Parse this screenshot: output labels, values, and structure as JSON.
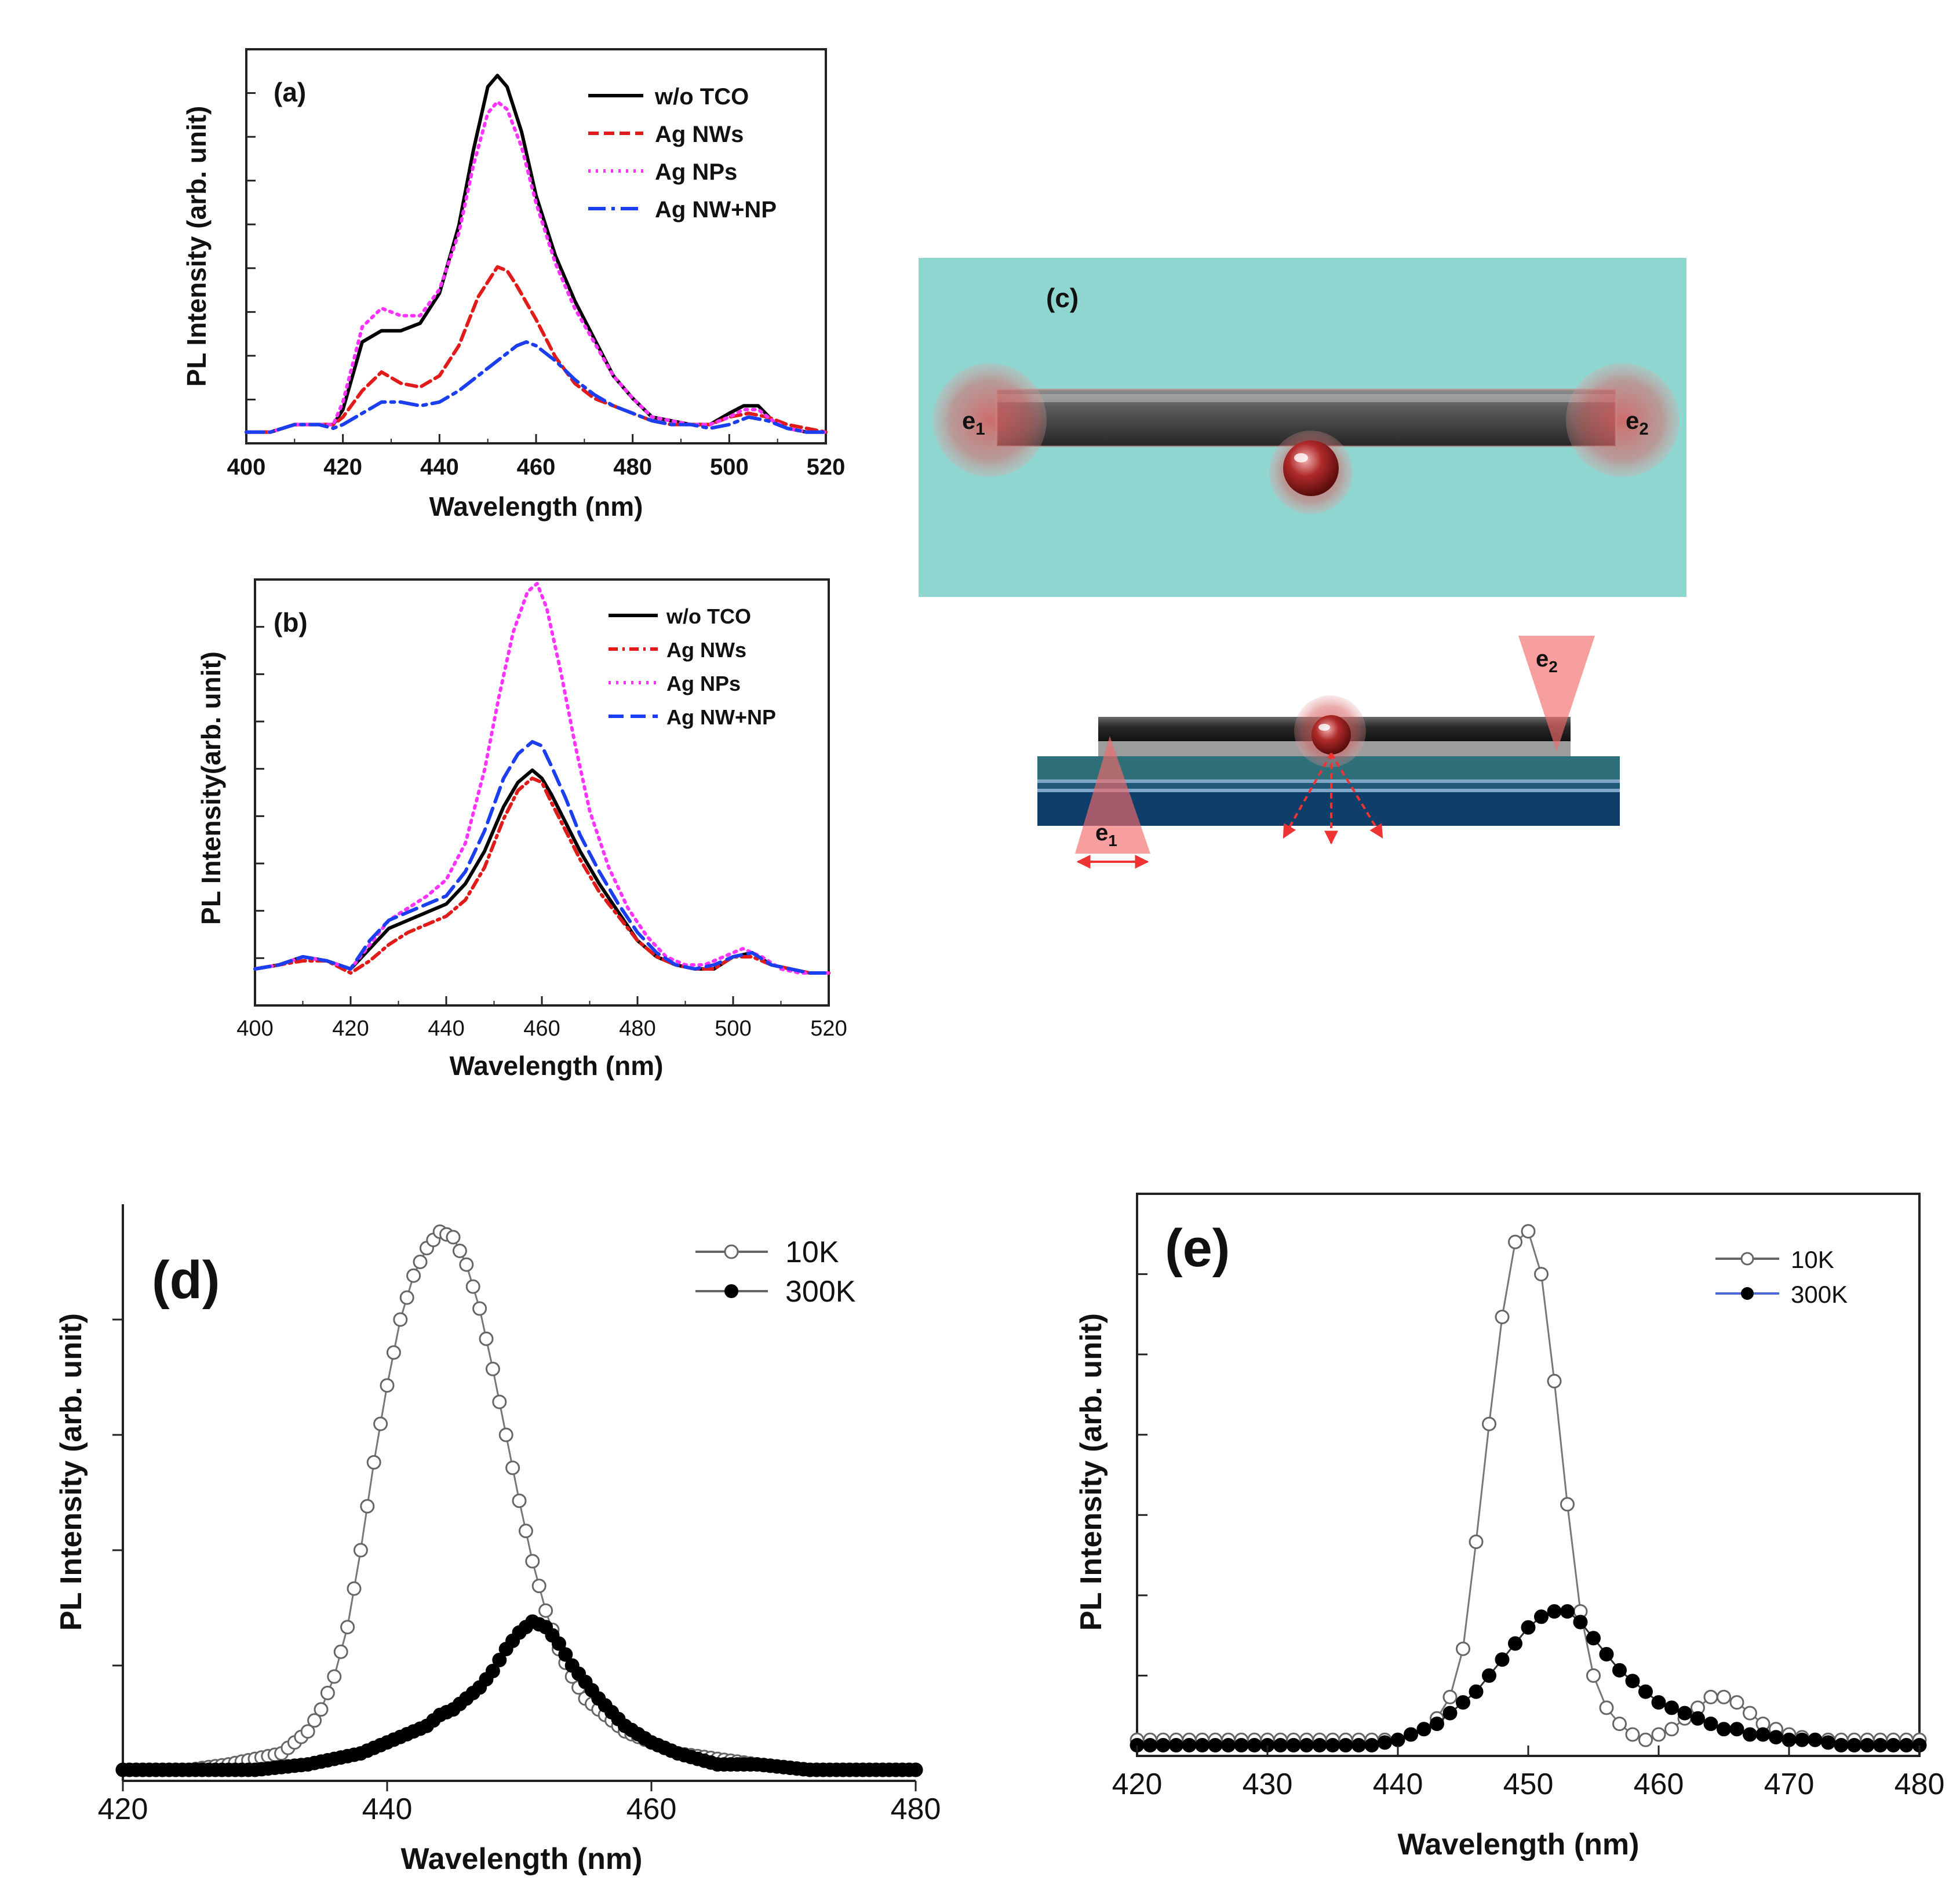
{
  "chart_data": [
    {
      "id": "a",
      "type": "line",
      "panel_label": "(a)",
      "xlabel": "Wavelength (nm)",
      "ylabel": "PL Intensity (arb. unit)",
      "xlim": [
        400,
        520
      ],
      "ylim": [
        0,
        1.05
      ],
      "xticks": [
        "400",
        "420",
        "440",
        "460",
        "480",
        "500",
        "520"
      ],
      "legend_position": "top-right",
      "series": [
        {
          "name": "w/o TCO",
          "color": "#000000",
          "dash": "solid",
          "x": [
            400,
            405,
            410,
            415,
            418,
            420,
            424,
            428,
            432,
            436,
            440,
            444,
            447,
            450,
            452,
            454,
            457,
            460,
            464,
            468,
            472,
            476,
            480,
            484,
            488,
            492,
            496,
            500,
            503,
            506,
            509,
            512,
            516,
            520
          ],
          "y": [
            0.03,
            0.03,
            0.05,
            0.05,
            0.05,
            0.09,
            0.27,
            0.3,
            0.3,
            0.32,
            0.4,
            0.58,
            0.78,
            0.95,
            0.98,
            0.95,
            0.83,
            0.66,
            0.5,
            0.38,
            0.28,
            0.18,
            0.12,
            0.07,
            0.06,
            0.05,
            0.05,
            0.08,
            0.1,
            0.1,
            0.06,
            0.04,
            0.03,
            0.03
          ]
        },
        {
          "name": "Ag NWs",
          "color": "#e11a1a",
          "dash": "18 9",
          "x": [
            400,
            405,
            410,
            415,
            418,
            420,
            424,
            428,
            432,
            436,
            440,
            444,
            448,
            452,
            454,
            456,
            460,
            464,
            468,
            472,
            476,
            480,
            484,
            488,
            492,
            496,
            500,
            504,
            508,
            512,
            516,
            520
          ],
          "y": [
            0.03,
            0.03,
            0.05,
            0.05,
            0.05,
            0.07,
            0.14,
            0.19,
            0.16,
            0.15,
            0.18,
            0.26,
            0.39,
            0.47,
            0.46,
            0.42,
            0.33,
            0.23,
            0.16,
            0.12,
            0.1,
            0.08,
            0.06,
            0.05,
            0.05,
            0.05,
            0.07,
            0.08,
            0.07,
            0.05,
            0.04,
            0.03
          ]
        },
        {
          "name": "Ag NPs",
          "color": "#ff33ff",
          "dash": "4 9",
          "x": [
            400,
            405,
            410,
            415,
            418,
            420,
            424,
            428,
            432,
            436,
            440,
            444,
            447,
            450,
            452,
            454,
            457,
            460,
            464,
            468,
            472,
            476,
            480,
            484,
            488,
            492,
            496,
            500,
            503,
            506,
            509,
            512,
            516,
            520
          ],
          "y": [
            0.03,
            0.03,
            0.05,
            0.05,
            0.05,
            0.11,
            0.31,
            0.36,
            0.34,
            0.34,
            0.41,
            0.56,
            0.74,
            0.88,
            0.91,
            0.89,
            0.79,
            0.64,
            0.48,
            0.36,
            0.27,
            0.18,
            0.12,
            0.07,
            0.06,
            0.05,
            0.05,
            0.07,
            0.09,
            0.09,
            0.06,
            0.04,
            0.03,
            0.03
          ]
        },
        {
          "name": "Ag NW+NP",
          "color": "#1a3ef0",
          "dash": "30 10 6 10",
          "x": [
            400,
            405,
            410,
            415,
            418,
            420,
            424,
            428,
            432,
            436,
            440,
            444,
            448,
            452,
            456,
            458,
            460,
            464,
            468,
            472,
            476,
            480,
            484,
            488,
            492,
            496,
            500,
            504,
            508,
            512,
            516,
            520
          ],
          "y": [
            0.03,
            0.03,
            0.05,
            0.05,
            0.04,
            0.05,
            0.08,
            0.11,
            0.11,
            0.1,
            0.11,
            0.14,
            0.18,
            0.22,
            0.26,
            0.27,
            0.26,
            0.22,
            0.17,
            0.13,
            0.1,
            0.08,
            0.06,
            0.05,
            0.05,
            0.04,
            0.05,
            0.07,
            0.06,
            0.04,
            0.03,
            0.03
          ]
        }
      ]
    },
    {
      "id": "b",
      "type": "line",
      "panel_label": "(b)",
      "xlabel": "Wavelength (nm)",
      "ylabel": "PL Intensity(arb. unit)",
      "xlim": [
        400,
        520
      ],
      "ylim": [
        0,
        1.05
      ],
      "xticks": [
        "400",
        "420",
        "440",
        "460",
        "480",
        "500",
        "520"
      ],
      "legend_position": "top-right",
      "series": [
        {
          "name": "w/o TCO",
          "color": "#000000",
          "dash": "solid",
          "x": [
            400,
            405,
            410,
            415,
            420,
            424,
            428,
            432,
            436,
            440,
            444,
            448,
            452,
            455,
            458,
            460,
            462,
            465,
            468,
            472,
            476,
            480,
            484,
            488,
            492,
            496,
            500,
            504,
            508,
            512,
            516,
            520
          ],
          "y": [
            0.09,
            0.1,
            0.12,
            0.11,
            0.09,
            0.14,
            0.19,
            0.21,
            0.23,
            0.25,
            0.3,
            0.38,
            0.49,
            0.55,
            0.58,
            0.56,
            0.52,
            0.45,
            0.38,
            0.3,
            0.23,
            0.16,
            0.12,
            0.1,
            0.09,
            0.09,
            0.12,
            0.13,
            0.1,
            0.09,
            0.08,
            0.08
          ]
        },
        {
          "name": "Ag NWs",
          "color": "#e11a1a",
          "dash": "16 8 4 8",
          "x": [
            400,
            405,
            410,
            415,
            420,
            424,
            428,
            432,
            436,
            440,
            444,
            448,
            452,
            455,
            458,
            460,
            462,
            465,
            468,
            472,
            476,
            480,
            484,
            488,
            492,
            496,
            500,
            504,
            508,
            512,
            516,
            520
          ],
          "y": [
            0.09,
            0.1,
            0.11,
            0.11,
            0.08,
            0.11,
            0.15,
            0.18,
            0.2,
            0.22,
            0.26,
            0.34,
            0.46,
            0.53,
            0.56,
            0.55,
            0.5,
            0.43,
            0.36,
            0.28,
            0.22,
            0.16,
            0.12,
            0.1,
            0.09,
            0.09,
            0.12,
            0.12,
            0.1,
            0.09,
            0.08,
            0.08
          ]
        },
        {
          "name": "Ag NPs",
          "color": "#ff33ff",
          "dash": "4 9",
          "x": [
            400,
            405,
            410,
            415,
            420,
            424,
            428,
            432,
            436,
            440,
            444,
            448,
            451,
            454,
            457,
            459,
            461,
            464,
            467,
            470,
            474,
            478,
            482,
            486,
            490,
            494,
            498,
            502,
            506,
            510,
            514,
            520
          ],
          "y": [
            0.09,
            0.1,
            0.12,
            0.11,
            0.09,
            0.15,
            0.21,
            0.24,
            0.27,
            0.31,
            0.4,
            0.58,
            0.76,
            0.92,
            1.02,
            1.04,
            0.98,
            0.82,
            0.64,
            0.48,
            0.34,
            0.24,
            0.17,
            0.12,
            0.1,
            0.1,
            0.12,
            0.14,
            0.12,
            0.09,
            0.08,
            0.08
          ]
        },
        {
          "name": "Ag NW+NP",
          "color": "#1a3ef0",
          "dash": "26 12",
          "x": [
            400,
            405,
            410,
            415,
            420,
            424,
            428,
            432,
            436,
            440,
            444,
            448,
            452,
            455,
            458,
            460,
            462,
            465,
            468,
            472,
            476,
            480,
            484,
            488,
            492,
            496,
            500,
            504,
            508,
            512,
            516,
            520
          ],
          "y": [
            0.09,
            0.1,
            0.12,
            0.11,
            0.09,
            0.16,
            0.21,
            0.23,
            0.25,
            0.27,
            0.33,
            0.43,
            0.56,
            0.62,
            0.65,
            0.64,
            0.59,
            0.51,
            0.42,
            0.33,
            0.25,
            0.18,
            0.13,
            0.1,
            0.09,
            0.1,
            0.12,
            0.13,
            0.1,
            0.09,
            0.08,
            0.08
          ]
        }
      ]
    },
    {
      "id": "d",
      "type": "scatter",
      "panel_label": "(d)",
      "xlabel": "Wavelength (nm)",
      "ylabel": "PL Intensity (arb. unit)",
      "xlim": [
        420,
        480
      ],
      "ylim": [
        0,
        1.05
      ],
      "xticks": [
        "420",
        "440",
        "460",
        "480"
      ],
      "legend_position": "top-right",
      "series": [
        {
          "name": "10K",
          "marker": "open",
          "color": "#666666",
          "x": [
            420,
            425,
            428,
            430,
            432,
            433,
            434,
            435,
            436,
            437,
            438,
            439,
            440,
            441,
            442,
            443,
            444,
            445,
            446,
            447,
            448,
            449,
            450,
            451,
            452,
            453,
            454,
            455,
            456,
            458,
            460,
            462,
            465,
            468,
            472,
            476,
            480
          ],
          "y": [
            0.02,
            0.02,
            0.03,
            0.04,
            0.05,
            0.07,
            0.09,
            0.13,
            0.19,
            0.28,
            0.42,
            0.58,
            0.72,
            0.84,
            0.92,
            0.97,
            1.0,
            0.99,
            0.94,
            0.86,
            0.75,
            0.63,
            0.51,
            0.4,
            0.31,
            0.24,
            0.19,
            0.15,
            0.13,
            0.09,
            0.07,
            0.05,
            0.04,
            0.03,
            0.02,
            0.02,
            0.02
          ]
        },
        {
          "name": "300K",
          "marker": "filled",
          "color": "#000000",
          "x": [
            420,
            425,
            430,
            434,
            436,
            438,
            439,
            440,
            441,
            442,
            443,
            444,
            445,
            446,
            447,
            448,
            449,
            450,
            451,
            452,
            453,
            454,
            455,
            456,
            458,
            460,
            462,
            465,
            468,
            472,
            476,
            480
          ],
          "y": [
            0.02,
            0.02,
            0.02,
            0.03,
            0.04,
            0.05,
            0.06,
            0.07,
            0.08,
            0.09,
            0.1,
            0.12,
            0.13,
            0.15,
            0.17,
            0.2,
            0.24,
            0.27,
            0.29,
            0.28,
            0.25,
            0.21,
            0.18,
            0.15,
            0.1,
            0.07,
            0.05,
            0.03,
            0.03,
            0.02,
            0.02,
            0.02
          ]
        }
      ]
    },
    {
      "id": "e",
      "type": "scatter",
      "panel_label": "(e)",
      "xlabel": "Wavelength (nm)",
      "ylabel": "PL Intensity (arb. unit)",
      "xlim": [
        420,
        480
      ],
      "ylim": [
        0,
        1.05
      ],
      "xticks": [
        "420",
        "430",
        "440",
        "450",
        "460",
        "470",
        "480"
      ],
      "legend_position": "top-right",
      "series": [
        {
          "name": "10K",
          "marker": "open",
          "color": "#666666",
          "x": [
            420,
            422,
            424,
            426,
            428,
            430,
            432,
            434,
            436,
            438,
            440,
            441,
            442,
            443,
            444,
            445,
            446,
            447,
            448,
            449,
            450,
            451,
            452,
            453,
            454,
            455,
            456,
            457,
            458,
            459,
            460,
            461,
            462,
            463,
            464,
            465,
            466,
            467,
            468,
            470,
            472,
            474,
            476,
            478,
            480
          ],
          "y": [
            0.03,
            0.03,
            0.03,
            0.03,
            0.03,
            0.03,
            0.03,
            0.03,
            0.03,
            0.03,
            0.03,
            0.04,
            0.05,
            0.07,
            0.11,
            0.2,
            0.4,
            0.62,
            0.82,
            0.96,
            0.98,
            0.9,
            0.7,
            0.47,
            0.27,
            0.15,
            0.09,
            0.06,
            0.04,
            0.03,
            0.04,
            0.05,
            0.07,
            0.09,
            0.11,
            0.11,
            0.1,
            0.08,
            0.06,
            0.04,
            0.03,
            0.03,
            0.03,
            0.03,
            0.03
          ]
        },
        {
          "name": "300K",
          "marker": "filled",
          "color": "#000000",
          "x": [
            420,
            422,
            424,
            426,
            428,
            430,
            432,
            434,
            436,
            438,
            440,
            441,
            442,
            443,
            444,
            445,
            446,
            447,
            448,
            449,
            450,
            451,
            452,
            453,
            454,
            455,
            456,
            457,
            458,
            459,
            460,
            461,
            462,
            463,
            464,
            465,
            466,
            467,
            468,
            470,
            472,
            474,
            476,
            478,
            480
          ],
          "y": [
            0.02,
            0.02,
            0.02,
            0.02,
            0.02,
            0.02,
            0.02,
            0.02,
            0.02,
            0.02,
            0.03,
            0.04,
            0.05,
            0.06,
            0.08,
            0.1,
            0.12,
            0.15,
            0.18,
            0.21,
            0.24,
            0.26,
            0.27,
            0.27,
            0.25,
            0.22,
            0.19,
            0.16,
            0.14,
            0.12,
            0.1,
            0.09,
            0.08,
            0.07,
            0.06,
            0.05,
            0.05,
            0.04,
            0.04,
            0.03,
            0.03,
            0.02,
            0.02,
            0.02,
            0.02
          ]
        }
      ]
    }
  ],
  "diagram_c": {
    "panel_label": "(c)",
    "top_view_labels": [
      "e1",
      "e2"
    ],
    "side_view_labels": [
      "e2",
      "e1"
    ]
  }
}
